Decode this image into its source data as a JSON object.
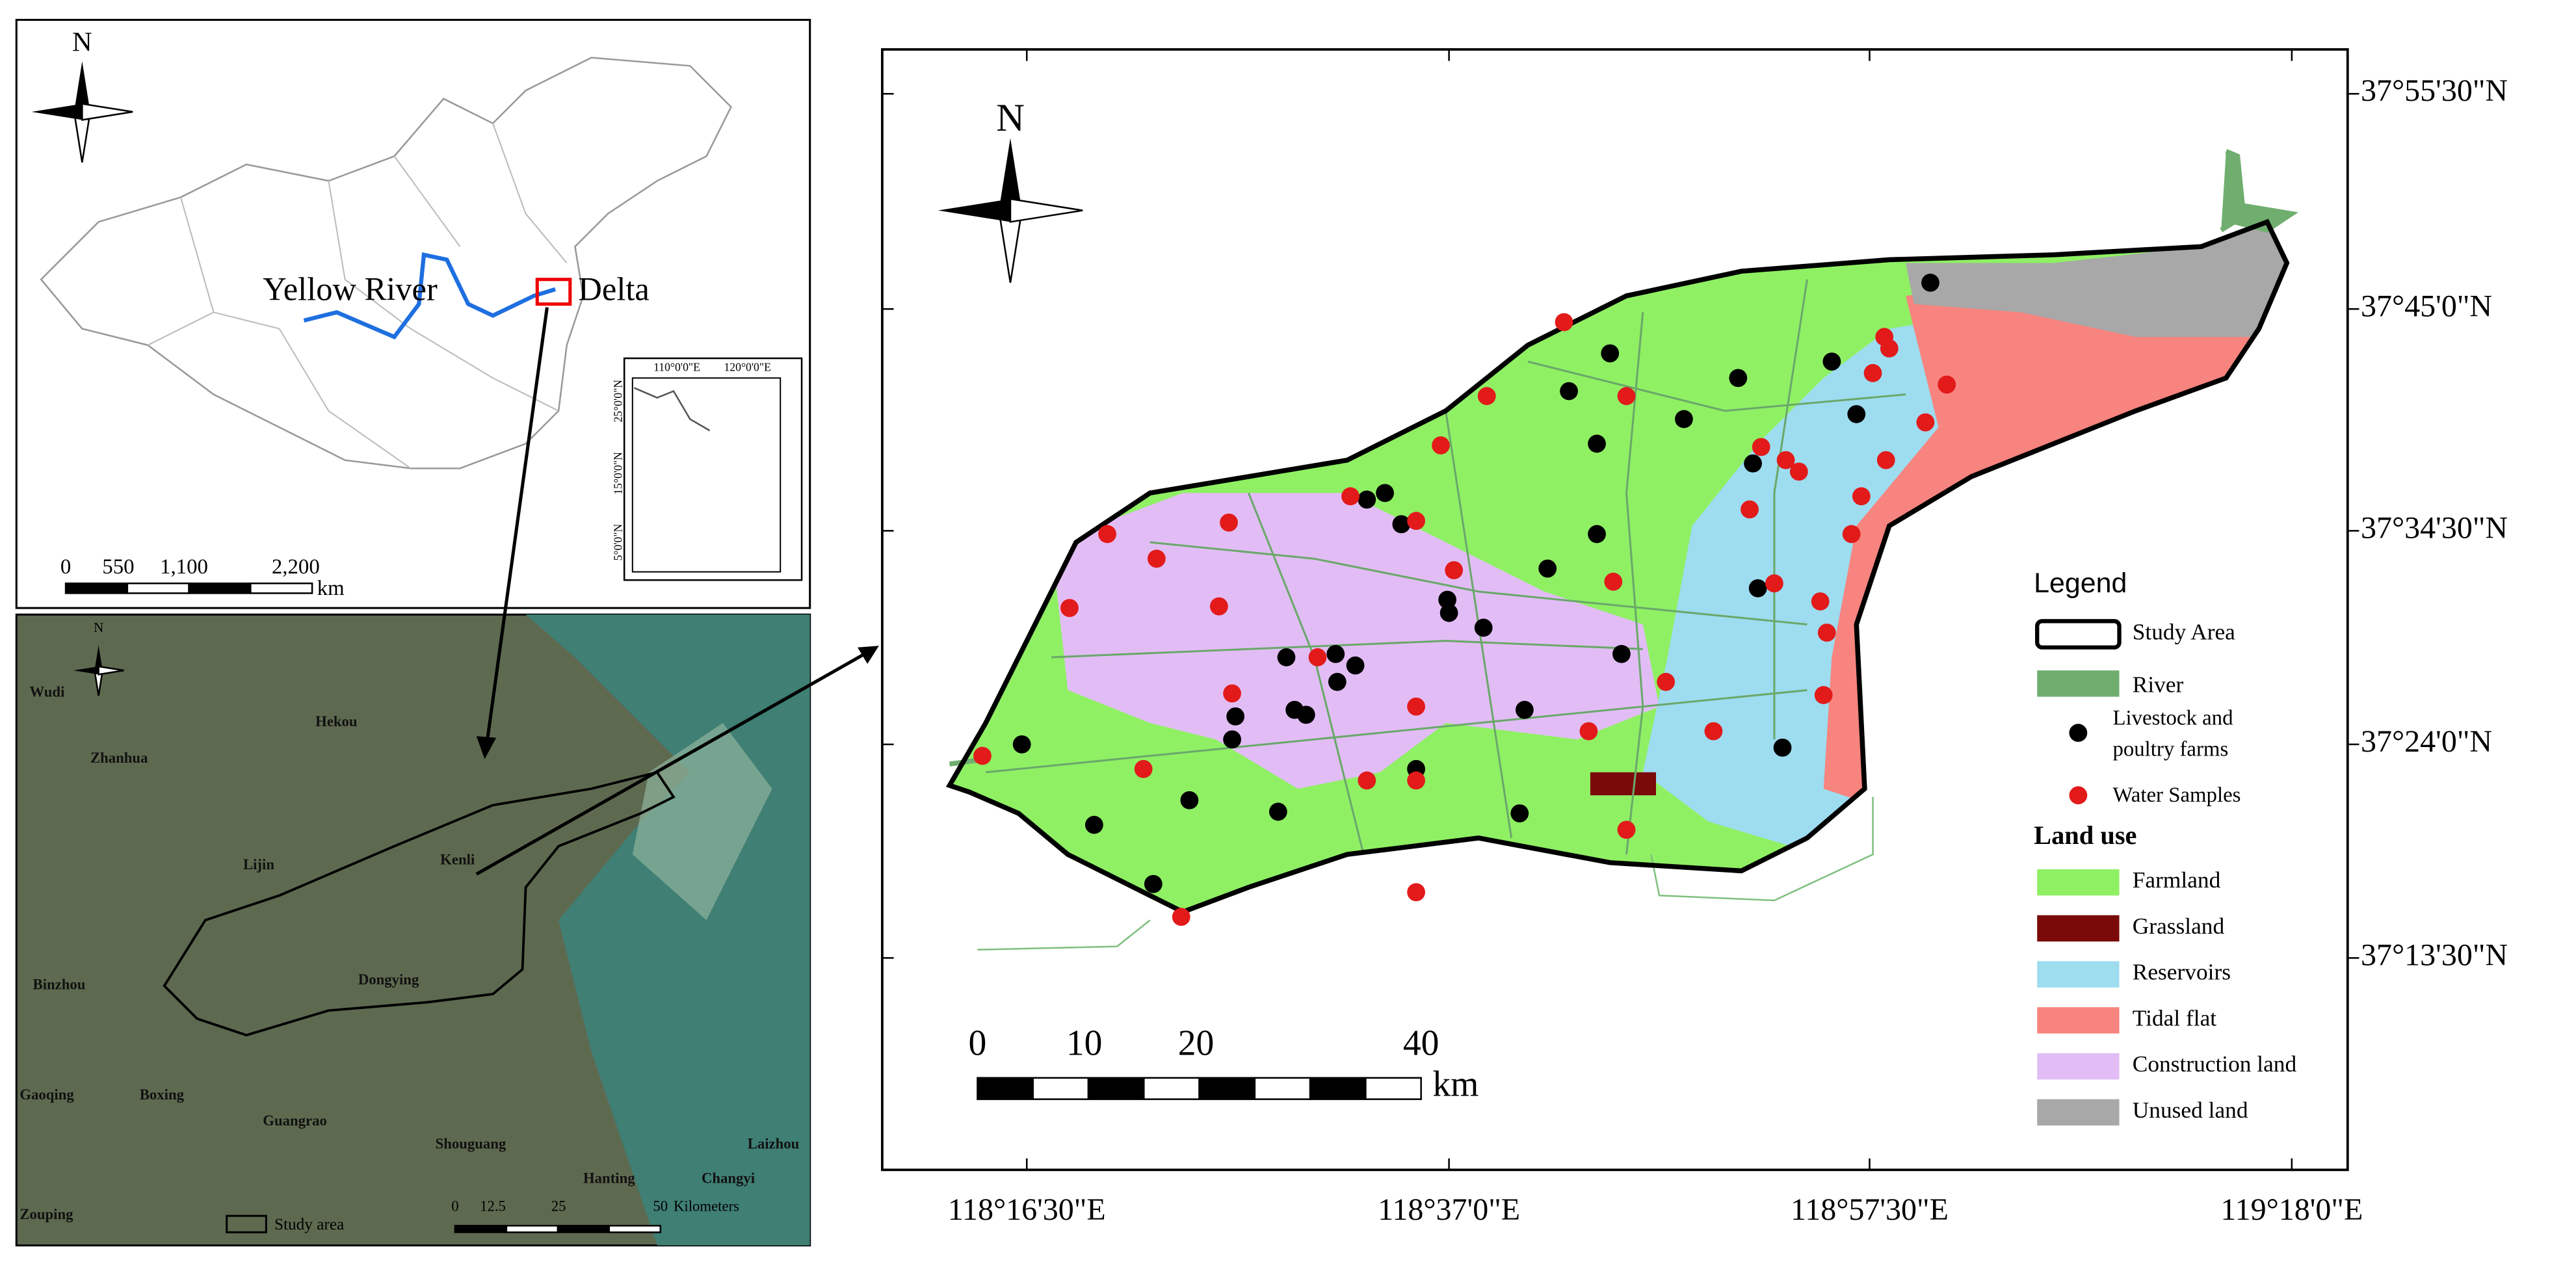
{
  "inset_china": {
    "north": "N",
    "yellow_river": "Yellow River",
    "delta": "Delta",
    "sub_inset": {
      "lon_labels": [
        "110°0'0\"E",
        "120°0'0\"E"
      ],
      "lat_labels": [
        "25°0'0\"N",
        "15°0'0\"N",
        "5°0'0\"N"
      ]
    },
    "scale": {
      "ticks": [
        "0",
        "550",
        "1,100",
        "2,200"
      ],
      "unit": "km"
    }
  },
  "satellite": {
    "north": "N",
    "places": [
      "Wudi",
      "Hekou",
      "Zhanhua",
      "Lijin",
      "Kenli",
      "Binzhou",
      "Dongying",
      "Gaoqing",
      "Boxing",
      "Guangrao",
      "Shouguang",
      "Laizhou",
      "Hanting",
      "Changyi",
      "Zouping"
    ],
    "legend": "Study area",
    "scale": {
      "ticks": [
        "0",
        "12.5",
        "25",
        "50"
      ],
      "unit": "Kilometers"
    }
  },
  "main_map": {
    "north": "N",
    "lat_labels": [
      "37°55'30\"N",
      "37°45'0\"N",
      "37°34'30\"N",
      "37°24'0\"N",
      "37°13'30\"N"
    ],
    "lon_labels": [
      "118°16'30\"E",
      "118°37'0\"E",
      "118°57'30\"E",
      "119°18'0\"E"
    ],
    "scale": {
      "ticks": [
        "0",
        "10",
        "20",
        "40"
      ],
      "unit": "km"
    },
    "legend": {
      "title": "Legend",
      "study_area": "Study Area",
      "river": "River",
      "farms": [
        "Livestock and",
        "poultry farms"
      ],
      "water_samples": "Water Samples",
      "land_use_title": "Land use",
      "land_use": [
        {
          "label": "Farmland",
          "color": "#8ff064"
        },
        {
          "label": "Grassland",
          "color": "#7a0a0a"
        },
        {
          "label": "Reservoirs",
          "color": "#9edcf0"
        },
        {
          "label": "Tidal flat",
          "color": "#f7847e"
        },
        {
          "label": "Construction land",
          "color": "#e2bdf5"
        },
        {
          "label": "Unused land",
          "color": "#a8a8a8"
        }
      ]
    }
  }
}
